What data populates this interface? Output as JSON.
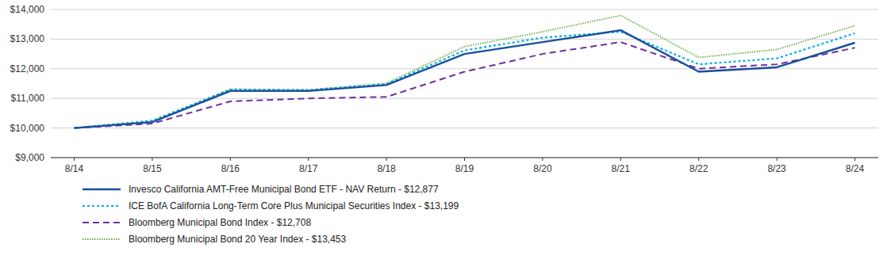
{
  "chart_data": {
    "type": "line",
    "categories": [
      "8/14",
      "8/15",
      "8/16",
      "8/17",
      "8/18",
      "8/19",
      "8/20",
      "8/21",
      "8/22",
      "8/23",
      "8/24"
    ],
    "series": [
      {
        "name": "Invesco California AMT-Free Municipal Bond ETF - NAV Return - $12,877",
        "color": "#1a4f9c",
        "line_style": "solid",
        "values": [
          10000,
          10200,
          11250,
          11250,
          11450,
          12500,
          12900,
          13300,
          11900,
          12050,
          12877
        ]
      },
      {
        "name": "ICE BofA California Long-Term Core Plus Municipal Securities Index - $13,199",
        "color": "#00aeef",
        "line_style": "dotted",
        "values": [
          10000,
          10250,
          11300,
          11280,
          11480,
          12620,
          13050,
          13250,
          12150,
          12350,
          13199
        ]
      },
      {
        "name": "Bloomberg Municipal Bond Index - $12,708",
        "color": "#7030a0",
        "line_style": "dashed",
        "values": [
          10000,
          10150,
          10900,
          11000,
          11050,
          11900,
          12500,
          12900,
          12000,
          12150,
          12708
        ]
      },
      {
        "name": "Bloomberg Municipal Bond 20 Year Index - $13,453",
        "color": "#70ad47",
        "line_style": "densely-dotted",
        "values": [
          10000,
          10220,
          11310,
          11290,
          11510,
          12750,
          13250,
          13800,
          12380,
          12650,
          13453
        ]
      }
    ],
    "ylim": [
      9000,
      14000
    ],
    "yticks": [
      {
        "value": 9000,
        "label": "$9,000"
      },
      {
        "value": 10000,
        "label": "$10,000"
      },
      {
        "value": 11000,
        "label": "$11,000"
      },
      {
        "value": 12000,
        "label": "$12,000"
      },
      {
        "value": 13000,
        "label": "$13,000"
      },
      {
        "value": 14000,
        "label": "$14,000"
      }
    ],
    "grid": true,
    "legend": "bottom"
  }
}
